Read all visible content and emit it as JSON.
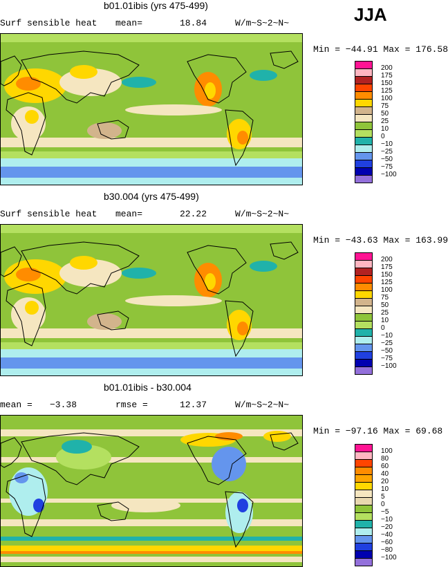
{
  "season": "JJA",
  "units": "W/m~S~2~N~",
  "panels": [
    {
      "title": "b01.01ibis (yrs 475-499)",
      "left_label": "Surf sensible heat",
      "stat_label": "mean=",
      "stat_value": "18.84",
      "minmax": "Min = −44.91 Max = 176.58",
      "legend": [
        "200",
        "175",
        "150",
        "125",
        "100",
        "75",
        "50",
        "25",
        "10",
        "0",
        "−10",
        "−25",
        "−50",
        "−75",
        "−100"
      ],
      "colors": [
        "#ff1493",
        "#ffb6c1",
        "#b22222",
        "#ff4500",
        "#ff8c00",
        "#ffd700",
        "#d2b48c",
        "#f5e6c0",
        "#8fc43a",
        "#b4e060",
        "#20b2aa",
        "#afeeee",
        "#6495ed",
        "#2040e0",
        "#0000b0",
        "#9370db"
      ]
    },
    {
      "title": "b30.004 (yrs 475-499)",
      "left_label": "Surf sensible heat",
      "stat_label": "mean=",
      "stat_value": "22.22",
      "minmax": "Min = −43.63 Max = 163.99",
      "legend": [
        "200",
        "175",
        "150",
        "125",
        "100",
        "75",
        "50",
        "25",
        "10",
        "0",
        "−10",
        "−25",
        "−50",
        "−75",
        "−100"
      ],
      "colors": [
        "#ff1493",
        "#ffb6c1",
        "#b22222",
        "#ff4500",
        "#ff8c00",
        "#ffd700",
        "#d2b48c",
        "#f5e6c0",
        "#8fc43a",
        "#b4e060",
        "#20b2aa",
        "#afeeee",
        "#6495ed",
        "#2040e0",
        "#0000b0",
        "#9370db"
      ]
    },
    {
      "title": "b01.01ibis - b30.004",
      "left_label": "mean =",
      "left_value": "−3.38",
      "stat_label": "rmse =",
      "stat_value": "12.37",
      "minmax": "Min = −97.16 Max =  69.68",
      "legend": [
        "100",
        "80",
        "60",
        "40",
        "20",
        "10",
        "5",
        "0",
        "−5",
        "−10",
        "−20",
        "−40",
        "−60",
        "−80",
        "−100"
      ],
      "colors": [
        "#ff1493",
        "#ffb6c1",
        "#ff4500",
        "#ff8c00",
        "#ffa500",
        "#ffd700",
        "#f5e6c0",
        "#e8d8b0",
        "#8fc43a",
        "#b4e060",
        "#20b2aa",
        "#afeeee",
        "#6495ed",
        "#2040e0",
        "#0000b0",
        "#9370db"
      ]
    }
  ],
  "chart_data": [
    {
      "type": "heatmap",
      "title": "b01.01ibis (yrs 475-499)",
      "variable": "Surf sensible heat",
      "units": "W/m~S~2~N~",
      "mean": 18.84,
      "min": -44.91,
      "max": 176.58,
      "contour_levels": [
        -100,
        -75,
        -50,
        -25,
        -10,
        0,
        10,
        25,
        50,
        75,
        100,
        125,
        150,
        175,
        200
      ]
    },
    {
      "type": "heatmap",
      "title": "b30.004 (yrs 475-499)",
      "variable": "Surf sensible heat",
      "units": "W/m~S~2~N~",
      "mean": 22.22,
      "min": -43.63,
      "max": 163.99,
      "contour_levels": [
        -100,
        -75,
        -50,
        -25,
        -10,
        0,
        10,
        25,
        50,
        75,
        100,
        125,
        150,
        175,
        200
      ]
    },
    {
      "type": "heatmap",
      "title": "b01.01ibis - b30.004",
      "units": "W/m~S~2~N~",
      "mean": -3.38,
      "rmse": 12.37,
      "min": -97.16,
      "max": 69.68,
      "contour_levels": [
        -100,
        -80,
        -60,
        -40,
        -20,
        -10,
        -5,
        0,
        5,
        10,
        20,
        40,
        60,
        80,
        100
      ]
    }
  ]
}
